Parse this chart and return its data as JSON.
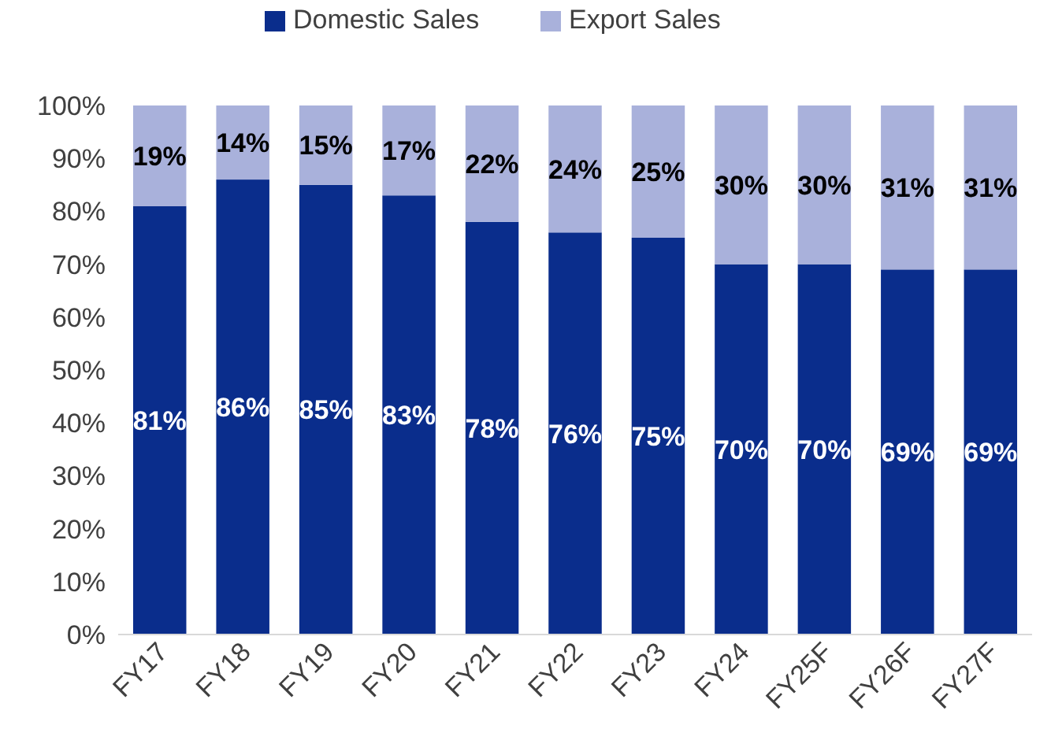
{
  "chart_data": {
    "type": "bar",
    "stacked": true,
    "categories": [
      "FY17",
      "FY18",
      "FY19",
      "FY20",
      "FY21",
      "FY22",
      "FY23",
      "FY24",
      "FY25F",
      "FY26F",
      "FY27F"
    ],
    "series": [
      {
        "name": "Domestic Sales",
        "color": "#0a2d8c",
        "values": [
          81,
          86,
          85,
          83,
          78,
          76,
          75,
          70,
          70,
          69,
          69
        ],
        "value_labels": [
          "81%",
          "86%",
          "85%",
          "83%",
          "78%",
          "76%",
          "75%",
          "70%",
          "70%",
          "69%",
          "69%"
        ]
      },
      {
        "name": "Export Sales",
        "color": "#a9b1db",
        "values": [
          19,
          14,
          15,
          17,
          22,
          24,
          25,
          30,
          30,
          31,
          31
        ],
        "value_labels": [
          "19%",
          "14%",
          "15%",
          "17%",
          "22%",
          "24%",
          "25%",
          "30%",
          "30%",
          "31%",
          "31%"
        ]
      }
    ],
    "ylim": [
      0,
      100
    ],
    "yticks": [
      {
        "value": 0,
        "label": "0%"
      },
      {
        "value": 10,
        "label": "10%"
      },
      {
        "value": 20,
        "label": "20%"
      },
      {
        "value": 30,
        "label": "30%"
      },
      {
        "value": 40,
        "label": "40%"
      },
      {
        "value": 50,
        "label": "50%"
      },
      {
        "value": 60,
        "label": "60%"
      },
      {
        "value": 70,
        "label": "70%"
      },
      {
        "value": 80,
        "label": "80%"
      },
      {
        "value": 90,
        "label": "90%"
      },
      {
        "value": 100,
        "label": "100%"
      }
    ],
    "grid": false,
    "legend": "top"
  }
}
